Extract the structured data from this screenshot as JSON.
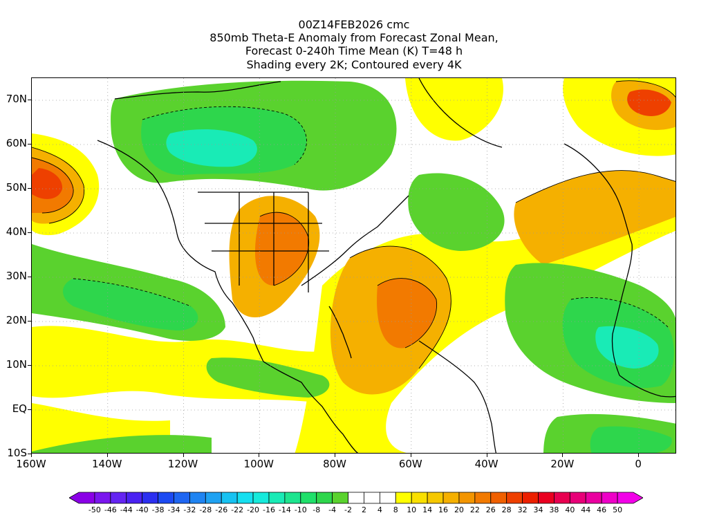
{
  "title": {
    "line1": "00Z14FEB2026 cmc",
    "line2": "850mb Theta-E Anomaly from Forecast Zonal Mean,",
    "line3": "Forecast 0-240h Time Mean (K) T=48 h",
    "line4": "Shading every 2K; Contoured every 4K"
  },
  "axes": {
    "y_ticks": [
      "70N",
      "60N",
      "50N",
      "40N",
      "30N",
      "20N",
      "10N",
      "EQ",
      "10S"
    ],
    "x_ticks": [
      "160W",
      "140W",
      "120W",
      "100W",
      "80W",
      "60W",
      "40W",
      "20W",
      "0"
    ],
    "lon_range": [
      -160,
      10
    ],
    "lat_range": [
      -10,
      75
    ]
  },
  "colorbar": {
    "labels": [
      "-50",
      "-46",
      "-44",
      "-40",
      "-38",
      "-34",
      "-32",
      "-28",
      "-26",
      "-22",
      "-20",
      "-16",
      "-14",
      "-10",
      "-8",
      "-4",
      "-2",
      "2",
      "4",
      "8",
      "10",
      "14",
      "16",
      "20",
      "22",
      "26",
      "28",
      "32",
      "34",
      "38",
      "40",
      "44",
      "46",
      "50"
    ],
    "colors": [
      "#8a00e6",
      "#7a16ee",
      "#6424f2",
      "#4a22f2",
      "#2b2ff0",
      "#1c4af2",
      "#1e66f2",
      "#1f84f2",
      "#1fa2f2",
      "#17c2f2",
      "#16dff0",
      "#16eadb",
      "#19ebb6",
      "#1de58f",
      "#1fe06a",
      "#2ed64c",
      "#5ad22e",
      "#ffffff",
      "#ffffff",
      "#ffffff",
      "#ffff00",
      "#fae000",
      "#f6c800",
      "#f5b000",
      "#f39500",
      "#f27a00",
      "#f06000",
      "#ee4000",
      "#ec2000",
      "#ea0020",
      "#e80050",
      "#e80078",
      "#ea00a0",
      "#ee00c8",
      "#f200e8"
    ]
  },
  "map_fields": {
    "colors": {
      "warm_light": "#ffff00",
      "warm_mid": "#f5b000",
      "warm_strong": "#f27a00",
      "warm_peak": "#ee4000",
      "cool_light": "#5ad22e",
      "cool_mid": "#2ed64c",
      "cool_strong": "#19ebb6",
      "cool_peak": "#17c2f2"
    }
  }
}
